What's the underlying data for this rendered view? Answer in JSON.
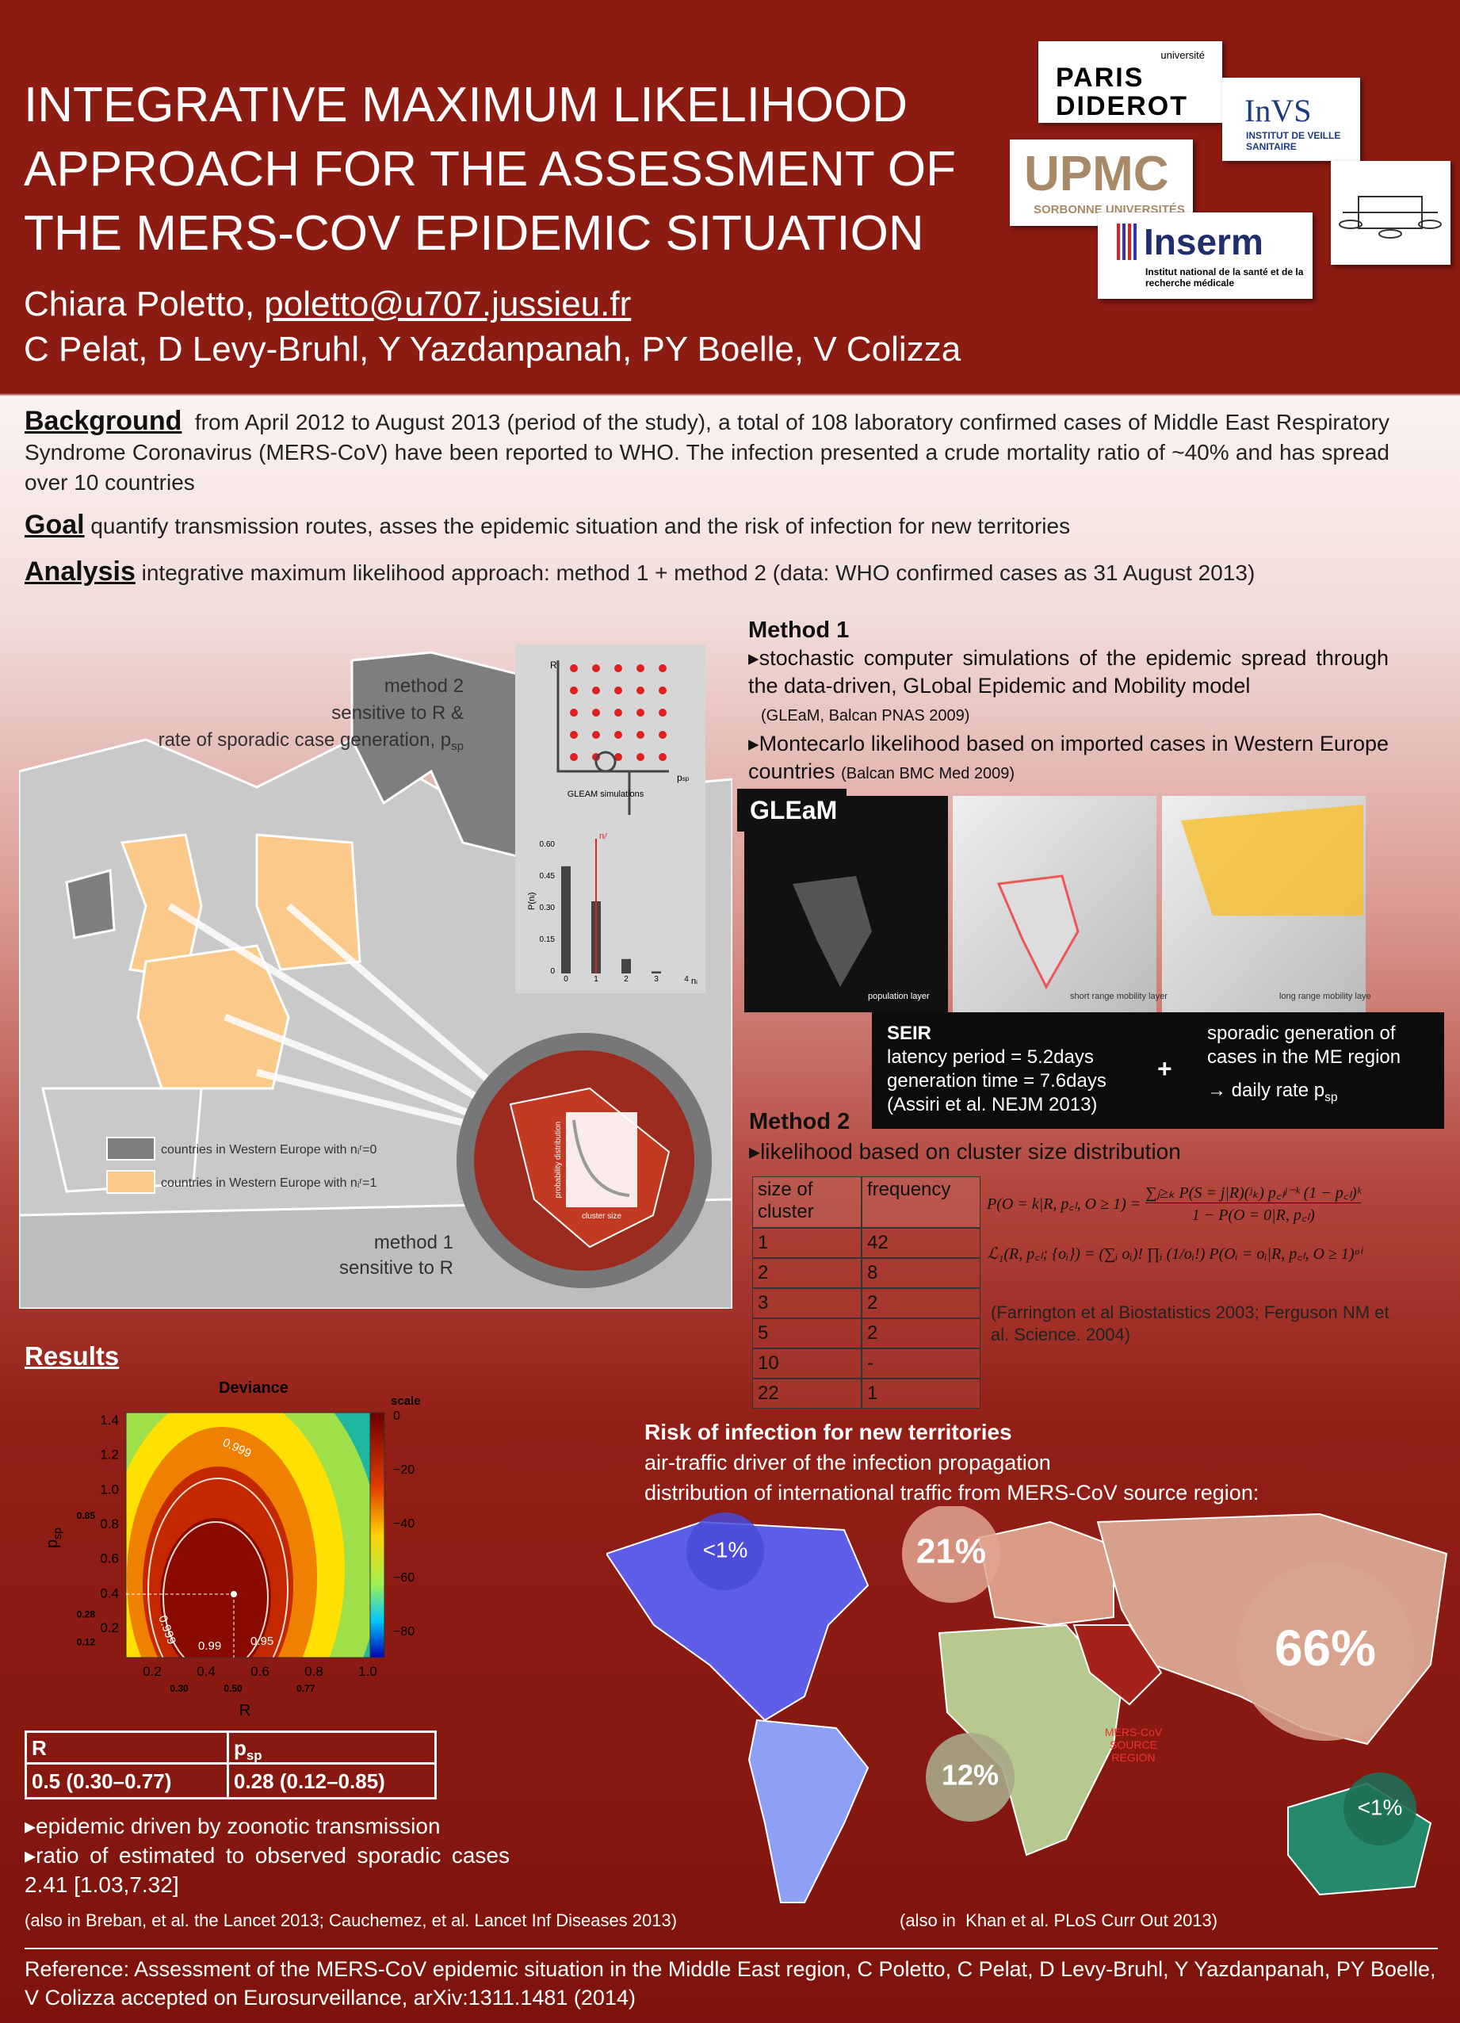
{
  "header": {
    "title_lines": [
      "INTEGRATIVE MAXIMUM LIKELIHOOD",
      "APPROACH FOR THE ASSESSMENT OF",
      "THE MERS-COV EPIDEMIC SITUATION"
    ],
    "presenter": "Chiara Poletto,",
    "email": "poletto@u707.jussieu.fr",
    "coauthors": "C Pelat, D Levy-Bruhl, Y Yazdanpanah, PY Boelle, V Colizza"
  },
  "logos": {
    "diderot_top": "université",
    "diderot": "PARIS DIDEROT",
    "invs": "InVS",
    "invs_sub": "INSTITUT DE VEILLE SANITAIRE",
    "upmc": "UPMC",
    "upmc_sub": "SORBONNE UNIVERSITÉS",
    "inserm": "Inserm",
    "inserm_sub": "Institut national de la santé et de la recherche médicale"
  },
  "intro": {
    "background_label": "Background",
    "background_text": "from April 2012 to August 2013 (period of the study), a total of 108 laboratory confirmed cases of Middle East Respiratory Syndrome Coronavirus (MERS-CoV) have been reported to WHO. The infection presented a crude mortality ratio of ~40% and has spread over 10 countries",
    "goal_label": "Goal",
    "goal_text": "quantify transmission routes, asses the epidemic situation and the risk of infection for new territories",
    "analysis_label": "Analysis",
    "analysis_text": "integrative maximum likelihood approach: method 1 + method 2 (data: WHO confirmed cases as 31 August 2013)"
  },
  "figure": {
    "method2_lines": [
      "method 2",
      "sensitive to R &",
      "rate of sporadic case generation, p"
    ],
    "method2_sub": "sp",
    "method1_lines": [
      "method 1",
      "sensitive to R"
    ],
    "legend": [
      "countries in Western Europe with nᵢʳ=0",
      "countries in Western Europe with nᵢʳ=1"
    ],
    "inset": {
      "y_axis": "R",
      "x_axis": "p",
      "x_axis_sub": "sp",
      "sim_label": "GLEAM simulations",
      "hist_y": "P(nᵢ)",
      "hist_yticks": [
        "0.60",
        "0.45",
        "0.30",
        "0.15",
        "0"
      ],
      "hist_xticks": [
        "0",
        "1",
        "2",
        "3",
        "4"
      ],
      "hist_x": "nᵢ",
      "marker": "nᵢʳ"
    },
    "zoom": {
      "y_axis": "probability distribution",
      "x_axis": "cluster size"
    }
  },
  "method1": {
    "heading": "Method 1",
    "bullets": [
      {
        "text": "stochastic computer simulations of the epidemic spread through the data-driven, GLobal Epidemic and Mobility model",
        "cite": "(GLEaM, Balcan PNAS 2009)"
      },
      {
        "text": "Montecarlo likelihood based on imported cases in Western Europe countries",
        "cite": "(Balcan BMC Med 2009)"
      }
    ]
  },
  "gleam": {
    "label": "GLEaM",
    "captions": [
      "population layer",
      "short range mobility layer",
      "long range mobility layer"
    ]
  },
  "seir": {
    "heading": "SEIR",
    "lines": [
      "latency period = 5.2days",
      "generation time = 7.6days",
      "(Assiri et al. NEJM 2013)"
    ],
    "plus": "+",
    "sporadic_lines": [
      "sporadic generation of",
      "cases in the ME region",
      "→ daily rate p"
    ],
    "sporadic_sub": "sp"
  },
  "method2": {
    "heading": "Method 2",
    "bullet": "likelihood based on cluster size distribution",
    "table": {
      "header": [
        "size of cluster",
        "frequency"
      ],
      "rows": [
        [
          "1",
          "42"
        ],
        [
          "2",
          "8"
        ],
        [
          "3",
          "2"
        ],
        [
          "5",
          "2"
        ],
        [
          "10",
          "-"
        ],
        [
          "22",
          "1"
        ]
      ]
    },
    "formula1_lhs": "P(O = k|R, p꜀ₗ, O ≥ 1) =",
    "formula1_num": "∑ⱼ≥ₖ P(S = j|R)(ʲₖ) p꜀ₗʲ⁻ᵏ (1 − p꜀ₗ)ᵏ",
    "formula1_den": "1 − P(O = 0|R, p꜀ₗ)",
    "formula2": "ℒ₁(R, p꜀ₗ; {oᵢ}) = (∑ᵢ oᵢ)! ∏ᵢ (1/oᵢ!) P(Oᵢ = oᵢ|R, p꜀ₗ, O ≥ 1)ᵒⁱ",
    "citation": "(Farrington et al Biostatistics 2003; Ferguson NM et al. Science. 2004)"
  },
  "results": {
    "heading": "Results",
    "heatmap": {
      "title": "Deviance",
      "scale_label": "scale",
      "x_label": "R",
      "y_label": "p",
      "y_label_sub": "sp",
      "xticks": [
        "0.2",
        "0.4",
        "0.6",
        "0.8",
        "1.0"
      ],
      "xticks_sub": [
        "0.30",
        "0.50",
        "0.77"
      ],
      "yticks": [
        "0.2",
        "0.4",
        "0.6",
        "0.8",
        "1.0",
        "1.2",
        "1.4"
      ],
      "yticks_sub": [
        "0.12",
        "0.28",
        "0.85"
      ],
      "cbar_ticks": [
        "0",
        "−20",
        "−40",
        "−60",
        "−80"
      ],
      "contours": [
        "0.999",
        "0.99",
        "0.95",
        "0.999"
      ]
    },
    "table": {
      "header_r": "R",
      "header_p": "p",
      "header_p_sub": "sp",
      "row": [
        "0.5 (0.30–0.77)",
        "0.28 (0.12–0.85)"
      ]
    },
    "bullets": [
      "epidemic driven by zoonotic transmission",
      "ratio of estimated to observed sporadic cases 2.41 [1.03,7.32]"
    ],
    "citation": "(also in Breban, et al. the Lancet 2013; Cauchemez, et al. Lancet Inf Diseases 2013)"
  },
  "risk": {
    "heading": "Risk of infection for new territories",
    "lines": [
      "air-traffic driver of the infection propagation",
      "distribution of international traffic from MERS-CoV source region:"
    ],
    "shares": [
      "<1%",
      "21%",
      "66%",
      "12%",
      "<1%"
    ],
    "source_label": [
      "MERS-CoV",
      "SOURCE",
      "REGION"
    ],
    "citation": "(also in  Khan et al. PLoS Curr Out 2013)"
  },
  "reference": "Reference: Assessment of the MERS-CoV epidemic situation in the Middle East region, C Poletto, C Pelat, D Levy-Bruhl, Y Yazdanpanah, PY Boelle, V Colizza accepted on Eurosurveillance, arXiv:1311.1481 (2014)"
}
